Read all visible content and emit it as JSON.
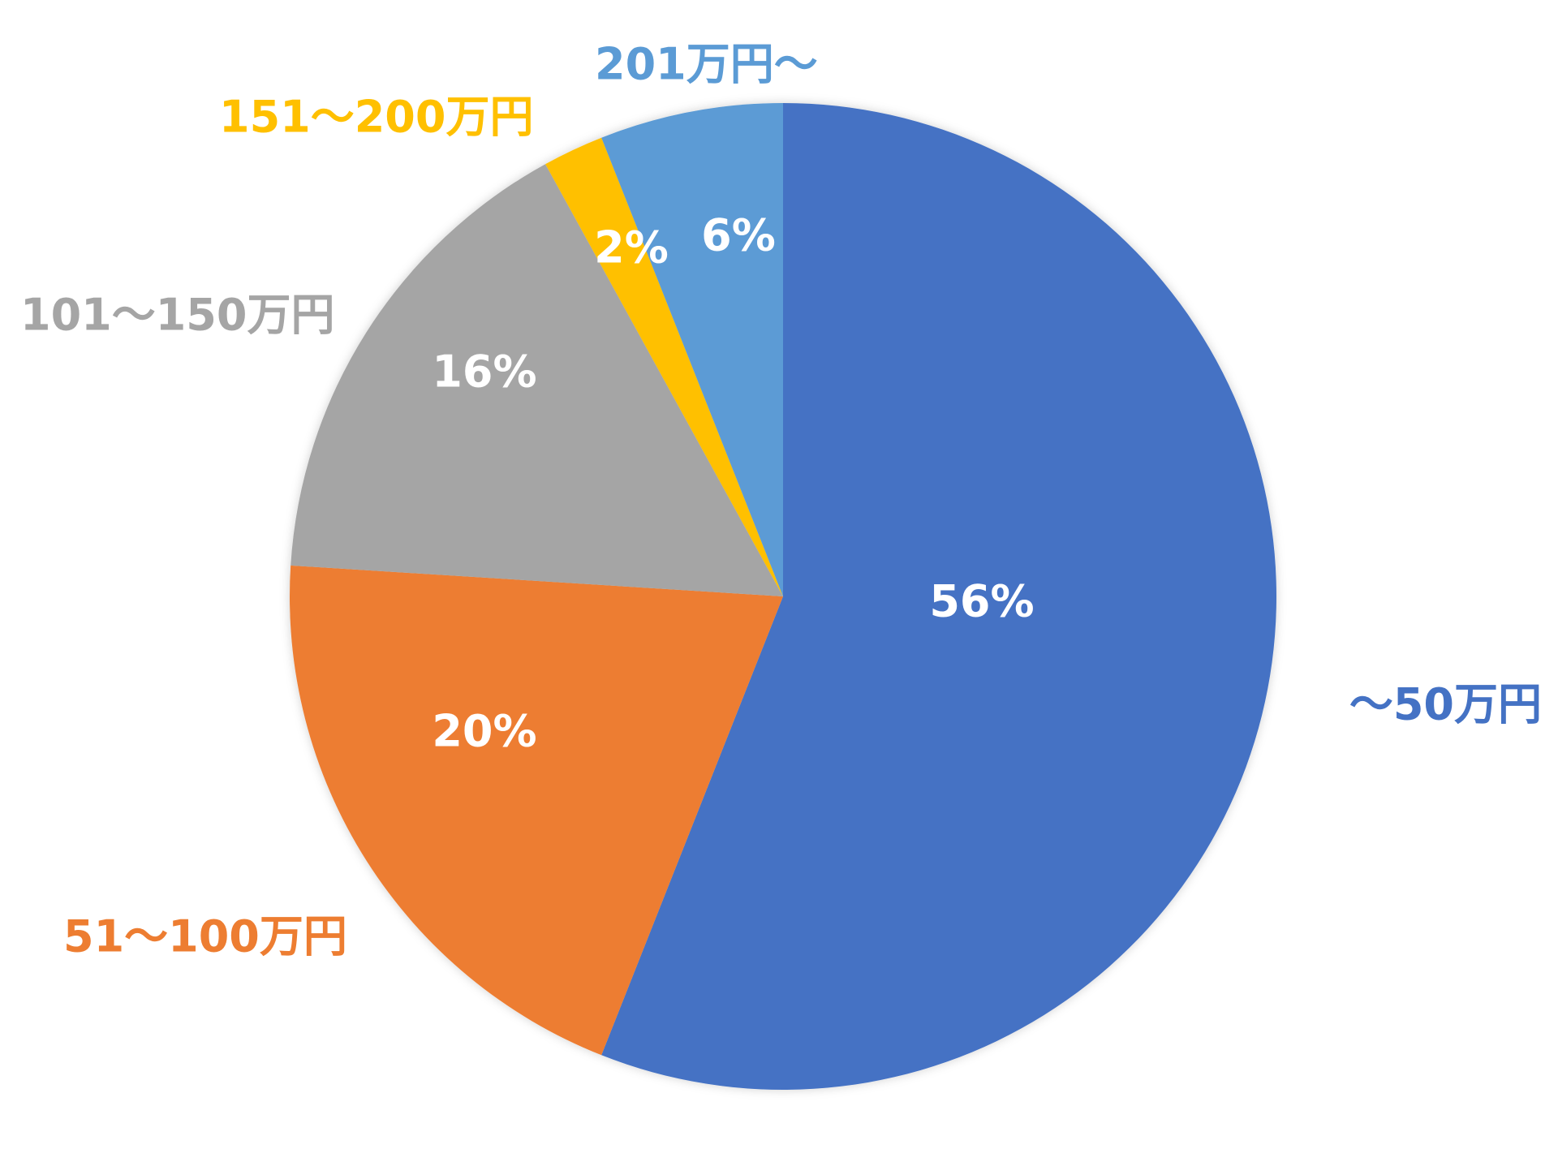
{
  "chart_data": {
    "type": "pie",
    "title": "",
    "start_angle_deg": 0,
    "direction": "clockwise",
    "categories": [
      "～50万円",
      "51～100万円",
      "101～150万円",
      "151～200万円",
      "201万円～"
    ],
    "values": [
      56,
      20,
      16,
      2,
      6
    ],
    "data_labels": [
      "56%",
      "20%",
      "16%",
      "2%",
      "6%"
    ],
    "colors": [
      "#4472C4",
      "#ED7D31",
      "#A5A5A5",
      "#FFC000",
      "#5B9BD5"
    ],
    "label_colors": [
      "#4472C4",
      "#ED7D31",
      "#A5A5A5",
      "#FFC000",
      "#5B9BD5"
    ],
    "legend": "none",
    "data_label_color": "#FFFFFF"
  }
}
